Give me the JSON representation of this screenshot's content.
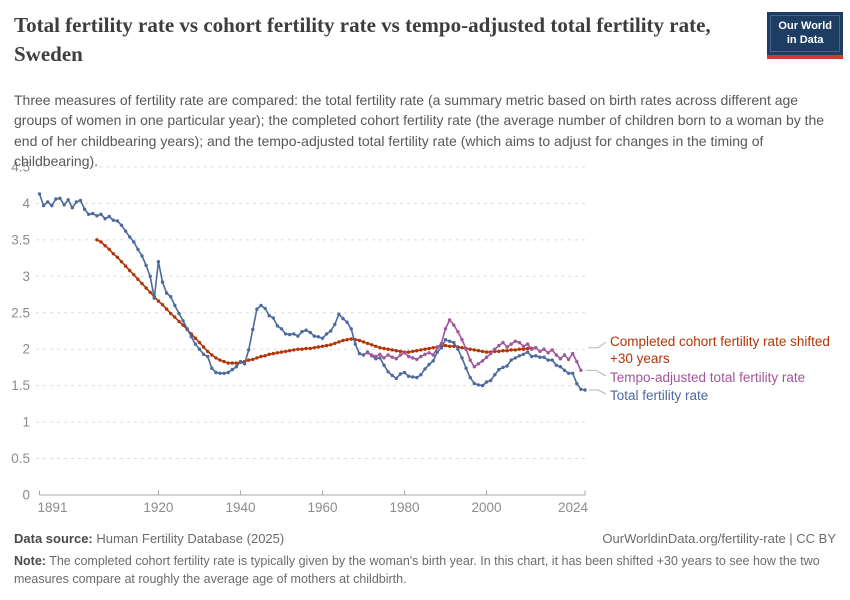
{
  "header": {
    "title": "Total fertility rate vs cohort fertility rate vs tempo-adjusted total fertility rate, Sweden",
    "subtitle": "Three measures of fertility rate are compared: the total fertility rate (a summary metric based on birth rates across different age groups of women in one particular year); the completed cohort fertility rate (the average number of children born to a woman by the end of her childbearing years); and the tempo-adjusted total fertility rate (which aims to adjust for changes in the timing of childbearing).",
    "logo": {
      "line1": "Our World",
      "line2": "in Data",
      "bg_color": "#1d3d63",
      "stripe_color": "#cf3b32"
    }
  },
  "legend": {
    "items": [
      {
        "label": "Completed cohort fertility rate shifted +30 years",
        "color": "#b13507"
      },
      {
        "label": "Tempo-adjusted total fertility rate",
        "color": "#a2559c"
      },
      {
        "label": "Total fertility rate",
        "color": "#4c6a9c"
      }
    ]
  },
  "footer": {
    "source_label": "Data source:",
    "source_text": " Human Fertility Database (2025)",
    "link_text": "OurWorldinData.org/fertility-rate | CC BY",
    "note_label": "Note:",
    "note_text": " The completed cohort fertility rate is typically given by the woman's birth year. In this chart, it has been shifted +30 years to see how the two measures compare at roughly the average age of mothers at childbirth."
  },
  "chart_data": {
    "type": "line",
    "title": "Total fertility rate vs cohort fertility rate vs tempo-adjusted total fertility rate, Sweden",
    "xlabel": "",
    "ylabel": "",
    "x_axis": {
      "ticks": [
        1891,
        1920,
        1940,
        1960,
        1980,
        2000,
        2024
      ],
      "range": [
        1891,
        2024
      ]
    },
    "y_axis": {
      "ticks": [
        0,
        0.5,
        1,
        1.5,
        2,
        2.5,
        3,
        3.5,
        4,
        4.5
      ],
      "range": [
        0,
        4.5
      ],
      "grid": "dashed"
    },
    "legend_position": "right-of-line-ends",
    "series": [
      {
        "name": "Completed cohort fertility rate shifted +30 years",
        "color": "#b13507",
        "start_year": 1905,
        "values": [
          3.5,
          3.47,
          3.42,
          3.37,
          3.31,
          3.26,
          3.2,
          3.14,
          3.08,
          3.02,
          2.96,
          2.9,
          2.84,
          2.78,
          2.72,
          2.66,
          2.61,
          2.55,
          2.49,
          2.44,
          2.38,
          2.33,
          2.27,
          2.21,
          2.15,
          2.09,
          2.03,
          1.97,
          1.92,
          1.88,
          1.85,
          1.83,
          1.81,
          1.81,
          1.81,
          1.82,
          1.83,
          1.85,
          1.86,
          1.88,
          1.9,
          1.91,
          1.93,
          1.94,
          1.95,
          1.96,
          1.97,
          1.98,
          1.99,
          2.0,
          2.0,
          2.01,
          2.01,
          2.02,
          2.03,
          2.04,
          2.05,
          2.06,
          2.08,
          2.1,
          2.12,
          2.13,
          2.14,
          2.13,
          2.12,
          2.1,
          2.08,
          2.06,
          2.04,
          2.02,
          2.01,
          2.0,
          1.99,
          1.98,
          1.97,
          1.96,
          1.96,
          1.97,
          1.98,
          1.99,
          2.0,
          2.01,
          2.02,
          2.03,
          2.04,
          2.05,
          2.04,
          2.04,
          2.03,
          2.02,
          2.01,
          2.0,
          1.99,
          1.98,
          1.97,
          1.96,
          1.96,
          1.97,
          1.97,
          1.98,
          1.98,
          1.99,
          1.99,
          2.0,
          2.0,
          2.01,
          2.01,
          2.02
        ]
      },
      {
        "name": "Total fertility rate",
        "color": "#4c6a9c",
        "start_year": 1891,
        "values": [
          4.13,
          3.97,
          4.02,
          3.97,
          4.06,
          4.07,
          3.98,
          4.05,
          3.94,
          4.02,
          4.04,
          3.92,
          3.85,
          3.86,
          3.83,
          3.85,
          3.79,
          3.82,
          3.77,
          3.76,
          3.7,
          3.62,
          3.54,
          3.47,
          3.37,
          3.28,
          3.15,
          3.0,
          2.7,
          3.2,
          2.92,
          2.77,
          2.72,
          2.6,
          2.49,
          2.39,
          2.28,
          2.17,
          2.07,
          2.0,
          1.93,
          1.9,
          1.74,
          1.68,
          1.67,
          1.67,
          1.68,
          1.72,
          1.76,
          1.83,
          1.8,
          1.99,
          2.27,
          2.55,
          2.6,
          2.56,
          2.46,
          2.43,
          2.32,
          2.28,
          2.21,
          2.2,
          2.21,
          2.18,
          2.24,
          2.26,
          2.23,
          2.18,
          2.17,
          2.15,
          2.21,
          2.25,
          2.34,
          2.48,
          2.42,
          2.37,
          2.28,
          2.07,
          1.94,
          1.92,
          1.96,
          1.91,
          1.87,
          1.88,
          1.78,
          1.69,
          1.64,
          1.6,
          1.66,
          1.68,
          1.63,
          1.62,
          1.61,
          1.65,
          1.73,
          1.79,
          1.84,
          1.96,
          2.02,
          2.13,
          2.11,
          2.09,
          2.0,
          1.88,
          1.74,
          1.61,
          1.53,
          1.51,
          1.5,
          1.55,
          1.57,
          1.65,
          1.72,
          1.75,
          1.77,
          1.85,
          1.88,
          1.91,
          1.93,
          1.96,
          1.9,
          1.91,
          1.89,
          1.89,
          1.85,
          1.85,
          1.78,
          1.76,
          1.71,
          1.67,
          1.67,
          1.53,
          1.45,
          1.44
        ]
      },
      {
        "name": "Tempo-adjusted total fertility rate",
        "color": "#a2559c",
        "start_year": 1971,
        "values": [
          1.95,
          1.92,
          1.9,
          1.93,
          1.88,
          1.92,
          1.89,
          1.87,
          1.92,
          1.95,
          1.9,
          1.88,
          1.86,
          1.9,
          1.93,
          1.95,
          1.92,
          2.02,
          2.08,
          2.28,
          2.4,
          2.33,
          2.24,
          2.13,
          2.0,
          1.85,
          1.76,
          1.8,
          1.84,
          1.89,
          1.94,
          2.0,
          2.05,
          2.09,
          2.03,
          2.07,
          2.11,
          2.09,
          2.04,
          2.07,
          2.0,
          2.02,
          1.97,
          2.0,
          1.95,
          1.99,
          1.92,
          1.87,
          1.92,
          1.86,
          1.94,
          1.83,
          1.71
        ]
      }
    ]
  }
}
